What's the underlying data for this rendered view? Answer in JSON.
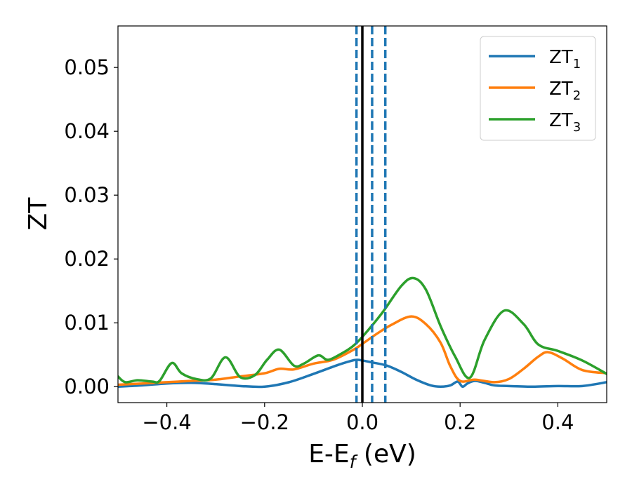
{
  "chart_data": {
    "type": "line",
    "xlabel": "E-E",
    "xlabel_subscript": "f",
    "xlabel_suffix": " (eV)",
    "ylabel": "ZT",
    "xlim": [
      -0.5,
      0.5
    ],
    "ylim": [
      -0.0025,
      0.0565
    ],
    "xticks": [
      -0.4,
      -0.2,
      0.0,
      0.2,
      0.4
    ],
    "xtick_labels": [
      "−0.4",
      "−0.2",
      "0.0",
      "0.2",
      "0.4"
    ],
    "yticks": [
      0.0,
      0.01,
      0.02,
      0.03,
      0.04,
      0.05
    ],
    "ytick_labels": [
      "0.00",
      "0.01",
      "0.02",
      "0.03",
      "0.04",
      "0.05"
    ],
    "grid": false,
    "legend_position": "top-right",
    "vlines": [
      {
        "x": 0.0,
        "style": "solid",
        "color": "#000000"
      },
      {
        "x": -0.012,
        "style": "dashed",
        "color": "#1f77b4"
      },
      {
        "x": 0.02,
        "style": "dashed",
        "color": "#1f77b4"
      },
      {
        "x": 0.047,
        "style": "dashed",
        "color": "#1f77b4"
      }
    ],
    "series": [
      {
        "name": "ZT",
        "subscript": "1",
        "color": "#1f77b4",
        "x": [
          -0.5,
          -0.45,
          -0.4,
          -0.35,
          -0.3,
          -0.25,
          -0.2,
          -0.15,
          -0.1,
          -0.05,
          -0.02,
          -0.01,
          0.0,
          0.02,
          0.05,
          0.08,
          0.11,
          0.14,
          0.16,
          0.18,
          0.195,
          0.205,
          0.215,
          0.23,
          0.25,
          0.27,
          0.3,
          0.35,
          0.4,
          0.45,
          0.5
        ],
        "y": [
          0.0,
          0.0002,
          0.0005,
          0.0006,
          0.0004,
          0.0001,
          0.0,
          0.0007,
          0.002,
          0.0034,
          0.0041,
          0.0042,
          0.0041,
          0.0038,
          0.0033,
          0.0023,
          0.0011,
          0.0002,
          0.0,
          0.0002,
          0.0008,
          0.0,
          0.0005,
          0.0009,
          0.0006,
          0.0002,
          0.0001,
          0.0,
          0.0001,
          0.0001,
          0.0007
        ]
      },
      {
        "name": "ZT",
        "subscript": "2",
        "color": "#ff7f0e",
        "x": [
          -0.5,
          -0.45,
          -0.4,
          -0.35,
          -0.3,
          -0.25,
          -0.2,
          -0.17,
          -0.14,
          -0.1,
          -0.06,
          -0.02,
          0.0,
          0.03,
          0.06,
          0.1,
          0.13,
          0.16,
          0.18,
          0.2,
          0.23,
          0.27,
          0.3,
          0.33,
          0.36,
          0.38,
          0.41,
          0.45,
          0.5
        ],
        "y": [
          0.0003,
          0.0005,
          0.0007,
          0.0009,
          0.0011,
          0.0016,
          0.0021,
          0.0028,
          0.0027,
          0.0036,
          0.0042,
          0.0057,
          0.0067,
          0.0083,
          0.0097,
          0.011,
          0.0098,
          0.0069,
          0.0032,
          0.0009,
          0.0011,
          0.0007,
          0.0012,
          0.0028,
          0.0047,
          0.0054,
          0.0044,
          0.0026,
          0.0021
        ]
      },
      {
        "name": "ZT",
        "subscript": "3",
        "color": "#2ca02c",
        "x": [
          -0.5,
          -0.485,
          -0.46,
          -0.43,
          -0.415,
          -0.39,
          -0.37,
          -0.34,
          -0.31,
          -0.28,
          -0.25,
          -0.22,
          -0.195,
          -0.17,
          -0.14,
          -0.12,
          -0.09,
          -0.07,
          -0.04,
          -0.02,
          0.0,
          0.04,
          0.08,
          0.105,
          0.13,
          0.16,
          0.19,
          0.22,
          0.25,
          0.29,
          0.33,
          0.36,
          0.4,
          0.45,
          0.5
        ],
        "y": [
          0.0016,
          0.0007,
          0.001,
          0.0008,
          0.0009,
          0.0037,
          0.0021,
          0.0012,
          0.0013,
          0.0046,
          0.0015,
          0.0018,
          0.0042,
          0.0058,
          0.0033,
          0.0036,
          0.0049,
          0.0042,
          0.0053,
          0.0063,
          0.0078,
          0.0115,
          0.0158,
          0.017,
          0.0152,
          0.0095,
          0.0047,
          0.0014,
          0.0073,
          0.0119,
          0.0098,
          0.0066,
          0.0056,
          0.0041,
          0.002
        ]
      }
    ]
  }
}
